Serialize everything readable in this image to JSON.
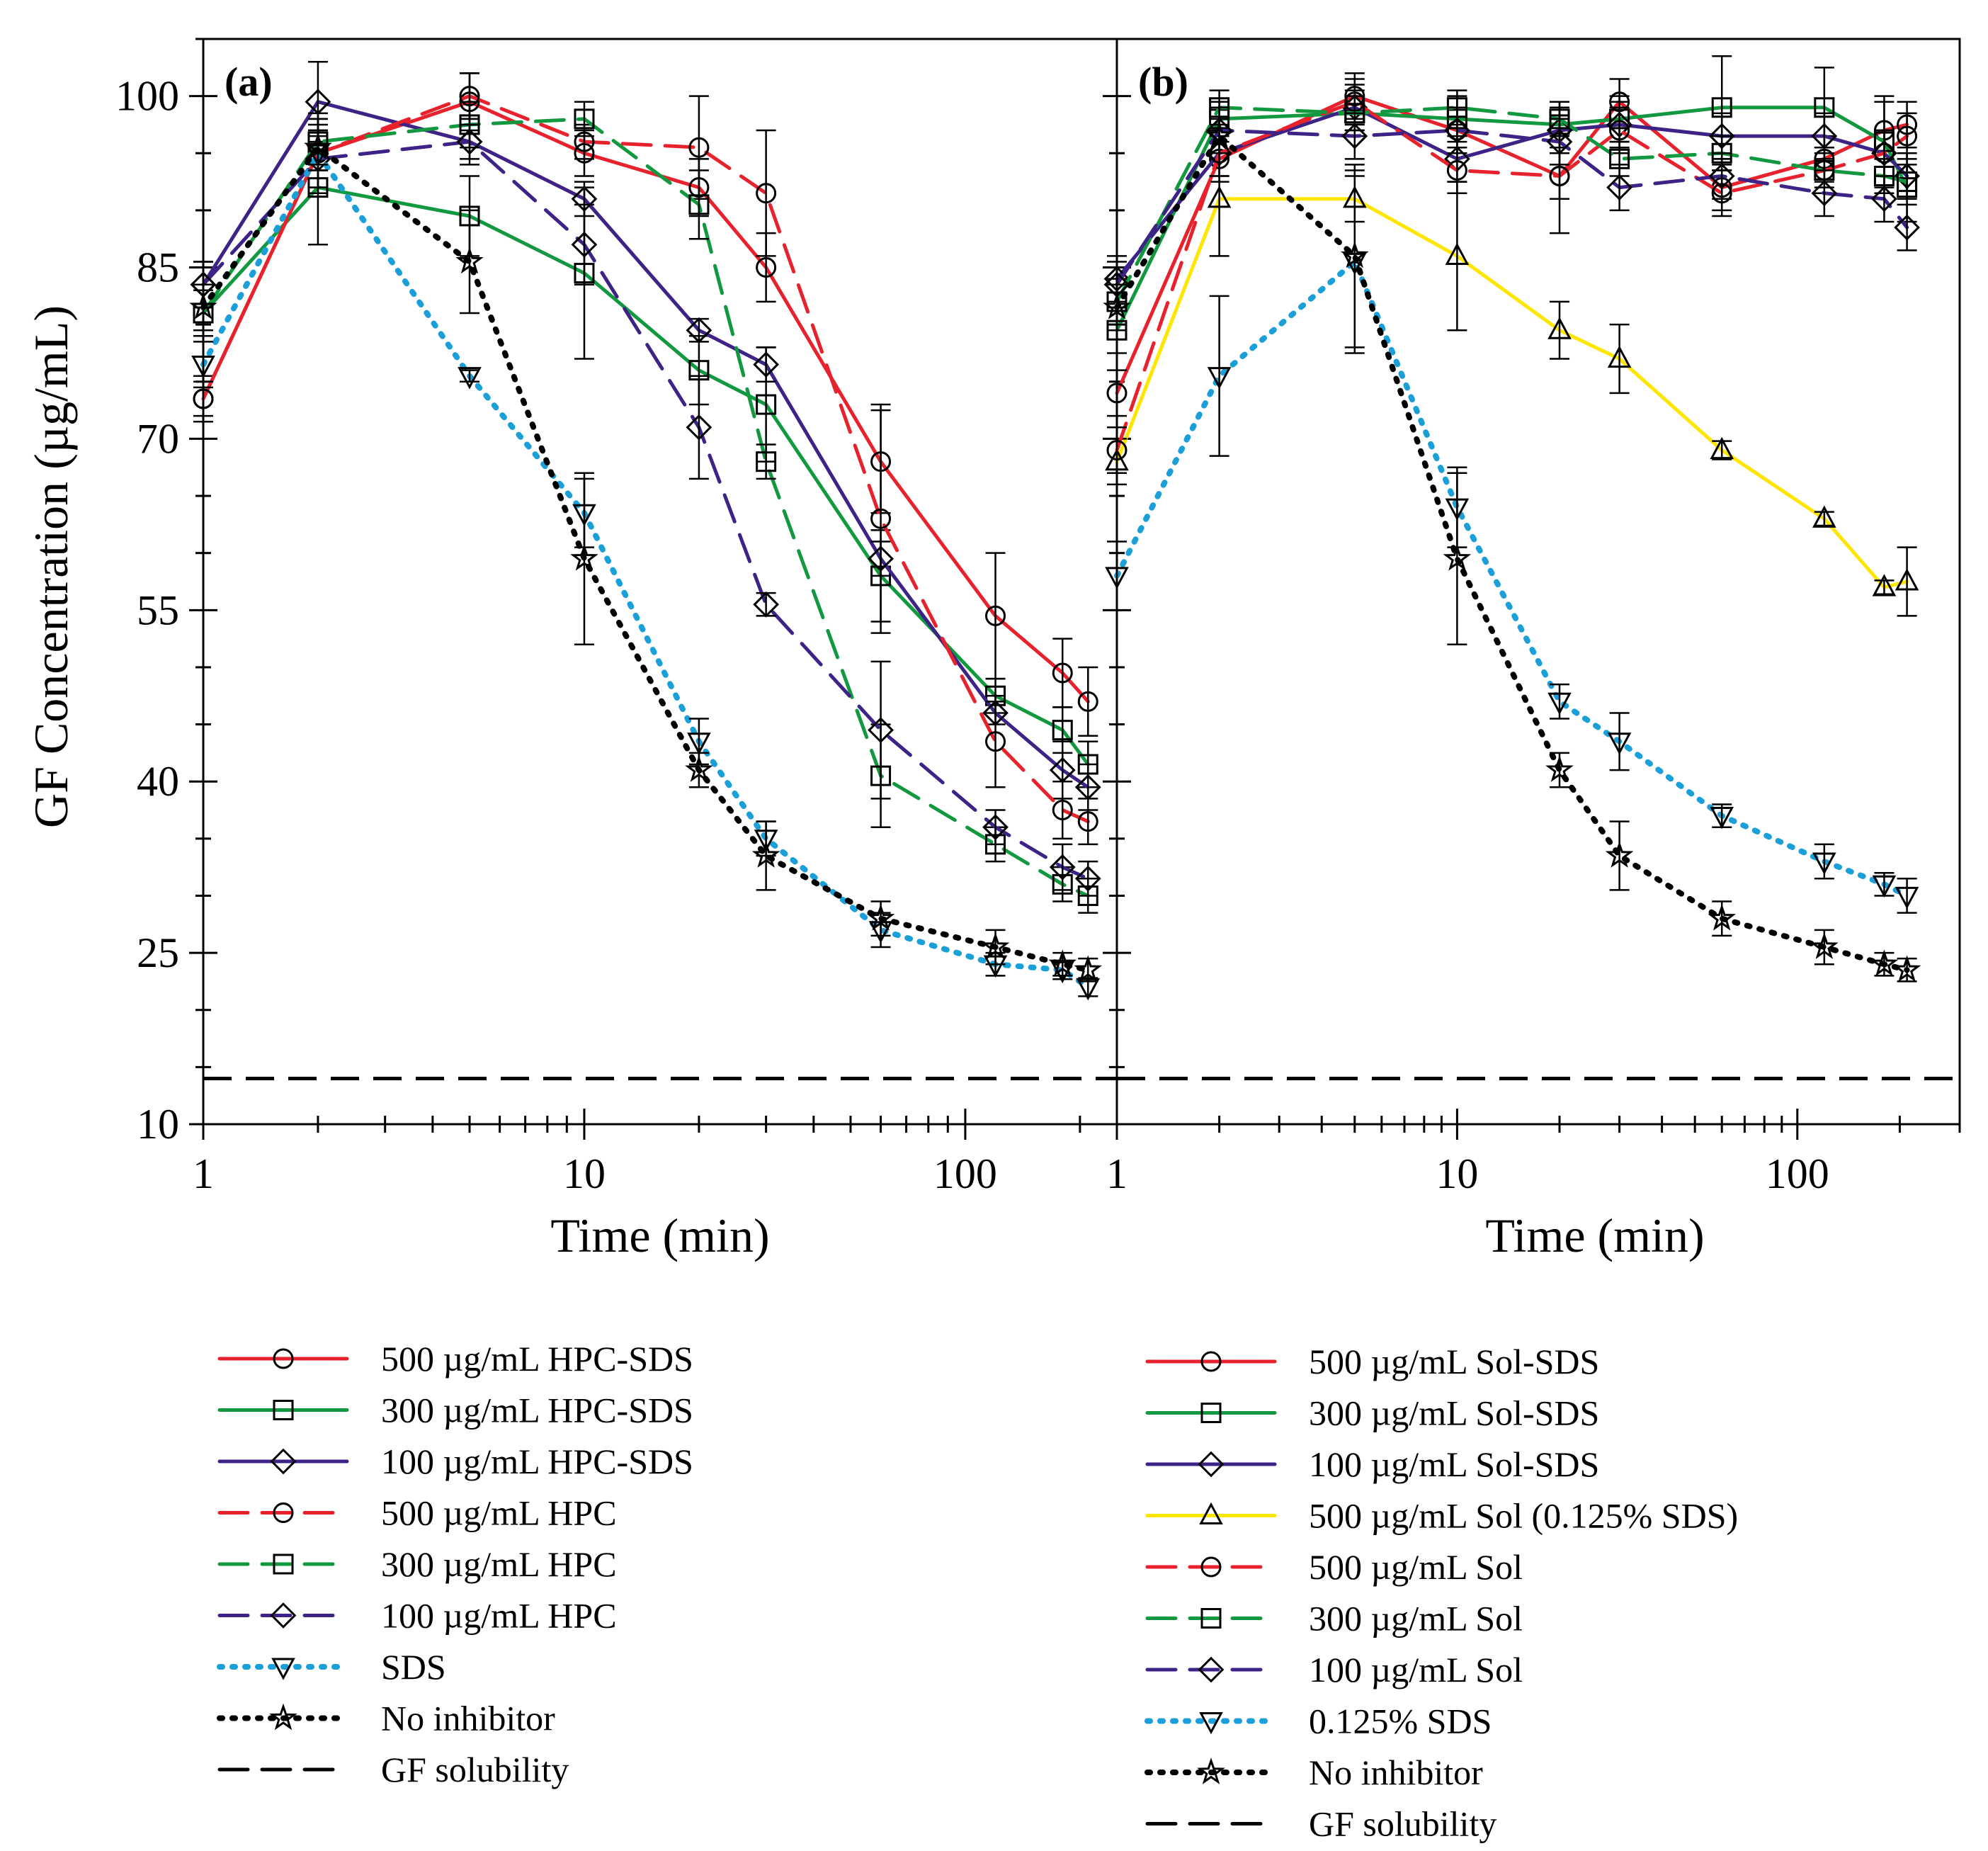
{
  "chart_data": {
    "type": "line",
    "ylabel": "GF Concentration (µg/mL)",
    "ylim": [
      10,
      105
    ],
    "yticks": [
      10,
      25,
      40,
      55,
      70,
      85,
      100
    ],
    "xscale": "log",
    "xticks": [
      1,
      10,
      100
    ],
    "panels": [
      {
        "label": "(a)",
        "xlabel": "Time (min)",
        "xlim": [
          1,
          250
        ],
        "series": [
          {
            "name": "500 µg/mL HPC-SDS",
            "color": "#e8222d",
            "dash": "solid",
            "marker": "circle",
            "x": [
              1,
              2,
              5,
              10,
              20,
              30,
              60,
              120,
              180,
              210
            ],
            "y": [
              73.5,
              95,
              99.5,
              95,
              92,
              85,
              68,
              54.5,
              49.5,
              47
            ],
            "err": [
              2,
              3,
              2.5,
              2,
              2.5,
              3,
              4.5,
              5.5,
              3,
              3
            ]
          },
          {
            "name": "300 µg/mL HPC-SDS",
            "color": "#129940",
            "dash": "solid",
            "marker": "square",
            "x": [
              1,
              2,
              5,
              10,
              20,
              30,
              60,
              120,
              180,
              210
            ],
            "y": [
              81,
              92,
              89.5,
              84.5,
              76,
              73,
              58,
              47.5,
              44.5,
              41.5
            ],
            "err": [
              2,
              5,
              3.5,
              7.5,
              3,
              5,
              4,
              1.5,
              2,
              2
            ]
          },
          {
            "name": "100 µg/mL HPC-SDS",
            "color": "#3e2387",
            "dash": "solid",
            "marker": "diamond",
            "x": [
              1,
              2,
              5,
              10,
              20,
              30,
              60,
              120,
              180,
              210
            ],
            "y": [
              83.5,
              99.5,
              96,
              91,
              79.5,
              76.5,
              59.5,
              46,
              41,
              39.5
            ],
            "err": [
              2,
              3.5,
              2,
              1.5,
              1,
              1.5,
              1.5,
              1,
              2.5,
              2
            ]
          },
          {
            "name": "500 µg/mL HPC",
            "color": "#e8222d",
            "dash": "long",
            "marker": "circle",
            "x": [
              1,
              2,
              5,
              10,
              20,
              30,
              60,
              120,
              180,
              210
            ],
            "y": [
              73.5,
              95,
              100,
              96,
              95.5,
              91.5,
              63,
              43.5,
              37.5,
              36.5
            ],
            "err": [
              1.5,
              3,
              2,
              1.5,
              4.5,
              5.5,
              10,
              4,
              2.5,
              2
            ]
          },
          {
            "name": "300 µg/mL HPC",
            "color": "#129940",
            "dash": "long",
            "marker": "square",
            "x": [
              1,
              2,
              5,
              10,
              20,
              30,
              60,
              120,
              180,
              210
            ],
            "y": [
              81,
              96,
              97.5,
              98,
              90.5,
              68,
              40.5,
              34.5,
              31,
              30
            ],
            "err": [
              2,
              2.5,
              2,
              1.5,
              3,
              1.5,
              4.5,
              1.5,
              1.5,
              1.5
            ]
          },
          {
            "name": "100 µg/mL HPC",
            "color": "#3e2387",
            "dash": "long",
            "marker": "diamond",
            "x": [
              1,
              2,
              5,
              10,
              20,
              30,
              60,
              120,
              180,
              210
            ],
            "y": [
              83.5,
              94.5,
              96,
              87,
              71,
              55.5,
              44.5,
              36,
              32.5,
              31.5
            ],
            "err": [
              2,
              3,
              1.5,
              3.5,
              4.5,
              1,
              6,
              1.5,
              2,
              1.5
            ]
          },
          {
            "name": "SDS",
            "color": "#1a9fd8",
            "dash": "dot",
            "marker": "tri-down",
            "x": [
              1,
              2,
              5,
              10,
              20,
              30,
              60,
              120,
              180,
              210
            ],
            "y": [
              76.5,
              95,
              75.5,
              63.5,
              43.5,
              35,
              27,
              24,
              23.5,
              22
            ],
            "err": [
              2,
              1.5,
              0.5,
              3,
              2,
              1.5,
              1.5,
              1,
              0.8,
              0.8
            ]
          },
          {
            "name": "No inhibitor",
            "color": "#000000",
            "dash": "dot",
            "marker": "star",
            "x": [
              1,
              2,
              5,
              10,
              20,
              30,
              60,
              120,
              180,
              210
            ],
            "y": [
              81.5,
              95.5,
              85.5,
              59.5,
              41,
              33.5,
              28,
              25.5,
              24,
              23.5
            ],
            "err": [
              2,
              1.5,
              4.5,
              7.5,
              1.5,
              3,
              1.5,
              1.5,
              1,
              1
            ]
          }
        ],
        "legend": [
          {
            "name": "500 µg/mL HPC-SDS",
            "color": "#e8222d",
            "dash": "solid",
            "marker": "circle"
          },
          {
            "name": "300 µg/mL HPC-SDS",
            "color": "#129940",
            "dash": "solid",
            "marker": "square"
          },
          {
            "name": "100 µg/mL HPC-SDS",
            "color": "#3e2387",
            "dash": "solid",
            "marker": "diamond"
          },
          {
            "name": "500 µg/mL HPC",
            "color": "#e8222d",
            "dash": "long",
            "marker": "circle"
          },
          {
            "name": "300 µg/mL HPC",
            "color": "#129940",
            "dash": "long",
            "marker": "square"
          },
          {
            "name": "100 µg/mL HPC",
            "color": "#3e2387",
            "dash": "long",
            "marker": "diamond"
          },
          {
            "name": "SDS",
            "color": "#1a9fd8",
            "dash": "dot",
            "marker": "tri-down"
          },
          {
            "name": "No inhibitor",
            "color": "#000000",
            "dash": "dot",
            "marker": "star"
          },
          {
            "name": "GF solubility",
            "color": "#000000",
            "dash": "long",
            "marker": "none"
          }
        ]
      },
      {
        "label": "(b)",
        "xlabel": "Time (min)",
        "xlim": [
          1,
          300
        ],
        "series": [
          {
            "name": "500 µg/mL Sol-SDS",
            "color": "#e8222d",
            "dash": "solid",
            "marker": "circle",
            "x": [
              1,
              2,
              5,
              10,
              20,
              30,
              60,
              120,
              180,
              210
            ],
            "y": [
              74,
              94.5,
              100,
              97,
              93,
              99.5,
              92,
              94.5,
              97,
              97.5
            ],
            "err": [
              2,
              2,
              2,
              2,
              5,
              2,
              2,
              2,
              2.5,
              2
            ]
          },
          {
            "name": "300 µg/mL Sol-SDS",
            "color": "#129940",
            "dash": "solid",
            "marker": "square",
            "x": [
              1,
              2,
              5,
              10,
              20,
              30,
              60,
              120,
              180,
              210
            ],
            "y": [
              79.5,
              98,
              98.5,
              98,
              97.5,
              98,
              99,
              99,
              96,
              92
            ],
            "err": [
              2,
              1.5,
              2,
              2,
              2,
              2,
              4.5,
              3.5,
              4,
              3
            ]
          },
          {
            "name": "100 µg/mL Sol-SDS",
            "color": "#3e2387",
            "dash": "solid",
            "marker": "diamond",
            "x": [
              1,
              2,
              5,
              10,
              20,
              30,
              60,
              120,
              180,
              210
            ],
            "y": [
              84,
              95,
              99,
              94.5,
              97,
              97.5,
              96.5,
              96.5,
              95,
              93
            ],
            "err": [
              2,
              2,
              2,
              2,
              2,
              2,
              2,
              2,
              2,
              2
            ]
          },
          {
            "name": "500 µg/mL Sol (0.125% SDS)",
            "color": "#ffe600",
            "dash": "solid",
            "marker": "tri-up",
            "x": [
              1,
              2,
              5,
              10,
              20,
              30,
              60,
              120,
              180,
              210
            ],
            "y": [
              68,
              91,
              91,
              86,
              79.5,
              77,
              69,
              63,
              57,
              57.5
            ],
            "err": [
              2,
              5,
              2,
              6.5,
              2.5,
              3,
              0.8,
              0.6,
              0.6,
              3
            ]
          },
          {
            "name": "500 µg/mL Sol",
            "color": "#e8222d",
            "dash": "long",
            "marker": "circle",
            "x": [
              1,
              2,
              5,
              10,
              20,
              30,
              60,
              120,
              180,
              210
            ],
            "y": [
              69,
              95,
              99.5,
              93.5,
              93,
              97,
              91.5,
              93.5,
              95,
              96.5
            ],
            "err": [
              2,
              2,
              2,
              2,
              2,
              2,
              2,
              2,
              2,
              2
            ]
          },
          {
            "name": "300 µg/mL Sol",
            "color": "#129940",
            "dash": "long",
            "marker": "square",
            "x": [
              1,
              2,
              5,
              10,
              20,
              30,
              60,
              120,
              180,
              210
            ],
            "y": [
              82,
              99,
              98.5,
              99,
              98,
              94.5,
              95,
              93.5,
              93,
              92.5
            ],
            "err": [
              2,
              1.5,
              1.5,
              1.5,
              1.5,
              1.5,
              1.5,
              1.5,
              1.5,
              1.5
            ]
          },
          {
            "name": "100 µg/mL Sol",
            "color": "#3e2387",
            "dash": "long",
            "marker": "diamond",
            "x": [
              1,
              2,
              5,
              10,
              20,
              30,
              60,
              120,
              180,
              210
            ],
            "y": [
              83.5,
              97,
              96.5,
              97,
              96,
              92,
              93,
              91.5,
              91,
              88.5
            ],
            "err": [
              2,
              2,
              2,
              2,
              2,
              2,
              2,
              2,
              2,
              2
            ]
          },
          {
            "name": "0.125% SDS",
            "color": "#1a9fd8",
            "dash": "dot",
            "marker": "tri-down",
            "x": [
              1,
              2,
              5,
              10,
              20,
              30,
              60,
              120,
              180,
              210
            ],
            "y": [
              58,
              75.5,
              85.5,
              64,
              47,
              43.5,
              37,
              33,
              31,
              30
            ],
            "err": [
              3,
              7,
              8,
              3.5,
              1.5,
              2.5,
              1,
              1.5,
              1,
              1.5
            ]
          },
          {
            "name": "No inhibitor",
            "color": "#000000",
            "dash": "dot",
            "marker": "star",
            "x": [
              1,
              2,
              5,
              10,
              20,
              30,
              60,
              120,
              180,
              210
            ],
            "y": [
              81.5,
              96.5,
              86,
              59.5,
              41,
              33.5,
              28,
              25.5,
              24,
              23.5
            ],
            "err": [
              2,
              1.5,
              8,
              7.5,
              1.5,
              3,
              1.5,
              1.5,
              1,
              1
            ]
          }
        ],
        "legend": [
          {
            "name": "500 µg/mL Sol-SDS",
            "color": "#e8222d",
            "dash": "solid",
            "marker": "circle"
          },
          {
            "name": "300 µg/mL Sol-SDS",
            "color": "#129940",
            "dash": "solid",
            "marker": "square"
          },
          {
            "name": "100 µg/mL Sol-SDS",
            "color": "#3e2387",
            "dash": "solid",
            "marker": "diamond"
          },
          {
            "name": "500 µg/mL Sol (0.125% SDS)",
            "color": "#ffe600",
            "dash": "solid",
            "marker": "tri-up"
          },
          {
            "name": "500 µg/mL Sol",
            "color": "#e8222d",
            "dash": "long",
            "marker": "circle"
          },
          {
            "name": "300 µg/mL Sol",
            "color": "#129940",
            "dash": "long",
            "marker": "square"
          },
          {
            "name": "100 µg/mL Sol",
            "color": "#3e2387",
            "dash": "long",
            "marker": "diamond"
          },
          {
            "name": "0.125% SDS",
            "color": "#1a9fd8",
            "dash": "dot",
            "marker": "tri-down"
          },
          {
            "name": "No inhibitor",
            "color": "#000000",
            "dash": "dot",
            "marker": "star"
          },
          {
            "name": "GF solubility",
            "color": "#000000",
            "dash": "long",
            "marker": "none"
          }
        ]
      }
    ],
    "reference_line": {
      "name": "GF solubility",
      "y": 14,
      "color": "#000000",
      "dash": "long"
    }
  }
}
